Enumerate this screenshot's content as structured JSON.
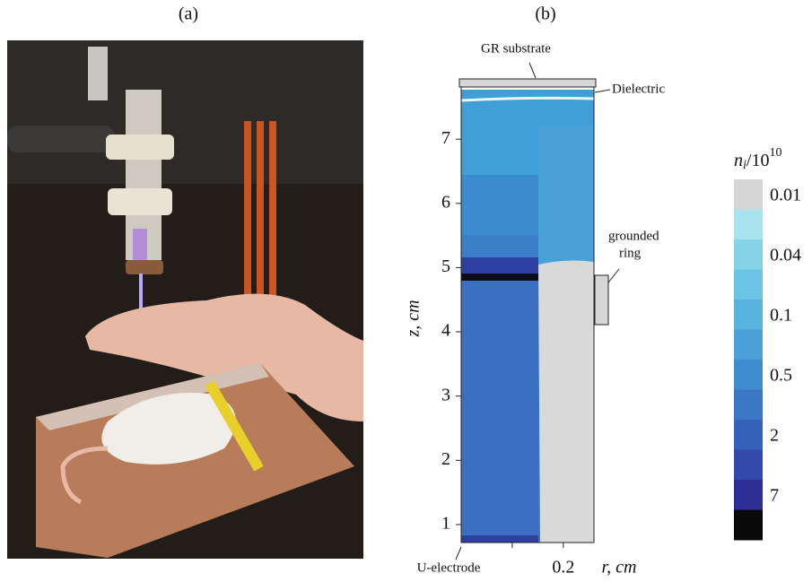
{
  "figure": {
    "panel_a": {
      "label": "(a)"
    },
    "panel_b": {
      "label": "(b)",
      "ylabel": "z, cm",
      "xlabel": "r, cm",
      "ylim": [
        0.72,
        7.84
      ],
      "yticks": [
        1,
        2,
        3,
        4,
        5,
        6,
        7
      ],
      "xlim": [
        0,
        0.26
      ],
      "xticks": [
        {
          "value": 0.1,
          "label": null
        },
        0.2
      ],
      "annotations": {
        "substrate": "GR substrate",
        "dielectric": "Dielectric",
        "ring": [
          "grounded",
          "ring"
        ],
        "electrode": "U-electrode"
      },
      "colorbar": {
        "title": {
          "symbol": "n",
          "subscript": "i",
          "divisor": "/10",
          "exponent": "10"
        },
        "colors": [
          "#d6d6d6",
          "#a8e3ee",
          "#86d3e8",
          "#6cc4e4",
          "#58b3df",
          "#4aa1d8",
          "#3f8ccf",
          "#3a78c6",
          "#3561b8",
          "#3349a9",
          "#2e2f94",
          "#0a0a0a"
        ],
        "ticks": [
          0.01,
          0.04,
          0.1,
          0.5,
          2,
          7
        ]
      }
    }
  }
}
